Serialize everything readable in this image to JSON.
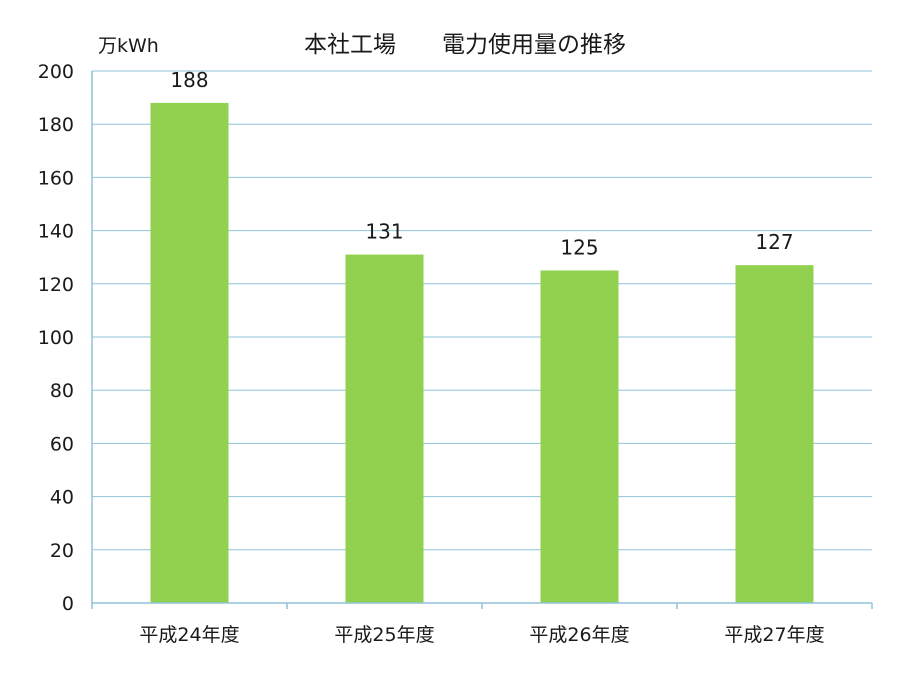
{
  "chart_data": {
    "type": "bar",
    "title": "本社工場　　電力使用量の推移",
    "ylabel": "万kWh",
    "xlabel": "",
    "categories": [
      "平成24年度",
      "平成25年度",
      "平成26年度",
      "平成27年度"
    ],
    "values": [
      188,
      131,
      125,
      127
    ],
    "ylim": [
      0,
      200
    ],
    "yticks": [
      0,
      20,
      40,
      60,
      80,
      100,
      120,
      140,
      160,
      180,
      200
    ],
    "grid": true,
    "legend": "none",
    "colors": {
      "bar": "#92d050",
      "grid": "#8fc3d8",
      "axis": "#8fc3d8"
    }
  }
}
